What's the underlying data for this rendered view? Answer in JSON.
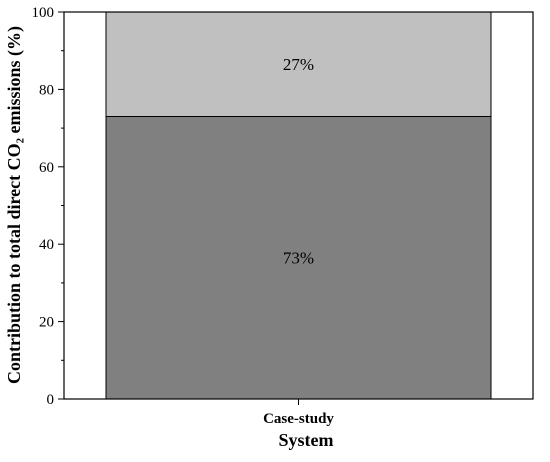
{
  "chart_data": {
    "type": "bar",
    "stacked": true,
    "categories": [
      "Case-study"
    ],
    "series": [
      {
        "values": [
          73
        ],
        "color": "#808080",
        "label": "73%"
      },
      {
        "values": [
          27
        ],
        "color": "#c0c0c0",
        "label": "27%"
      }
    ],
    "xlabel": "System",
    "ylabel": "Contribution to total direct CO₂ emissions (%)",
    "ylim": [
      0,
      100
    ],
    "yticks": [
      0,
      20,
      40,
      60,
      80,
      100
    ],
    "grid": false,
    "legend": false
  }
}
